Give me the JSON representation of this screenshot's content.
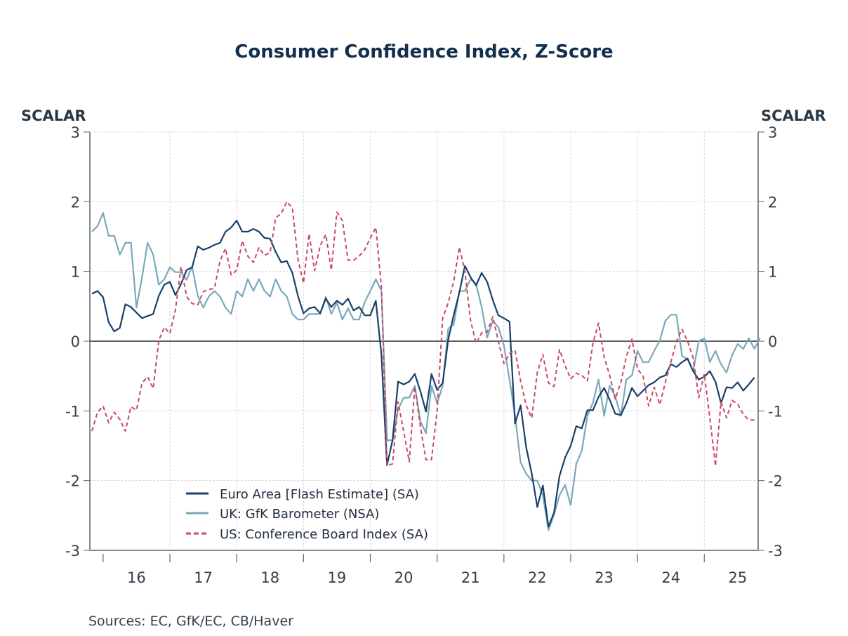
{
  "chart_data": {
    "type": "line",
    "title": "Consumer Confidence Index, Z-Score",
    "ylabel_left": "SCALAR",
    "ylabel_right": "SCALAR",
    "xlabel": "",
    "ylim": [
      -3,
      3
    ],
    "yticks": [
      "3",
      "2",
      "1",
      "0",
      "-1",
      "-2",
      "-3"
    ],
    "ytick_values": [
      3,
      2,
      1,
      0,
      -1,
      -2,
      -3
    ],
    "xtick_labels": [
      "16",
      "17",
      "18",
      "19",
      "20",
      "21",
      "22",
      "23",
      "24",
      "25"
    ],
    "x_start": "2015-11",
    "x_frequency": "monthly",
    "grid": true,
    "zero_line": true,
    "legend_position": "bottom-left",
    "source": "Sources:  EC, GfK/EC, CB/Haver",
    "series": [
      {
        "name": "Euro Area [Flash Estimate] (SA)",
        "color": "#17406a",
        "style": "solid",
        "values": [
          0.68,
          0.72,
          0.63,
          0.27,
          0.14,
          0.19,
          0.53,
          0.49,
          0.41,
          0.33,
          0.36,
          0.39,
          0.65,
          0.81,
          0.85,
          0.66,
          0.82,
          1.02,
          1.06,
          1.36,
          1.31,
          1.34,
          1.38,
          1.41,
          1.57,
          1.63,
          1.73,
          1.57,
          1.57,
          1.61,
          1.57,
          1.48,
          1.47,
          1.28,
          1.13,
          1.15,
          0.98,
          0.65,
          0.4,
          0.47,
          0.49,
          0.4,
          0.61,
          0.49,
          0.58,
          0.52,
          0.61,
          0.44,
          0.49,
          0.37,
          0.37,
          0.58,
          -0.2,
          -1.78,
          -1.42,
          -0.58,
          -0.62,
          -0.58,
          -0.47,
          -0.72,
          -1.01,
          -0.47,
          -0.7,
          -0.6,
          0.02,
          0.38,
          0.7,
          1.08,
          0.92,
          0.8,
          0.98,
          0.85,
          0.59,
          0.37,
          0.33,
          0.28,
          -1.18,
          -0.92,
          -1.52,
          -1.9,
          -2.38,
          -2.07,
          -2.66,
          -2.46,
          -1.93,
          -1.67,
          -1.5,
          -1.22,
          -1.25,
          -0.99,
          -0.99,
          -0.8,
          -0.67,
          -0.84,
          -1.04,
          -1.06,
          -0.89,
          -0.67,
          -0.79,
          -0.71,
          -0.63,
          -0.59,
          -0.52,
          -0.49,
          -0.33,
          -0.37,
          -0.3,
          -0.25,
          -0.43,
          -0.55,
          -0.51,
          -0.43,
          -0.58,
          -0.89,
          -0.66,
          -0.67,
          -0.59,
          -0.71,
          -0.62,
          -0.52
        ]
      },
      {
        "name": "UK: GfK Barometer (NSA)",
        "color": "#7aa9b8",
        "style": "solid",
        "values": [
          1.57,
          1.65,
          1.84,
          1.51,
          1.51,
          1.24,
          1.41,
          1.41,
          0.48,
          0.92,
          1.41,
          1.24,
          0.81,
          0.89,
          1.06,
          0.99,
          0.99,
          0.88,
          1.07,
          0.65,
          0.48,
          0.64,
          0.72,
          0.64,
          0.48,
          0.39,
          0.72,
          0.64,
          0.89,
          0.72,
          0.89,
          0.72,
          0.64,
          0.89,
          0.72,
          0.64,
          0.39,
          0.31,
          0.31,
          0.39,
          0.39,
          0.39,
          0.64,
          0.39,
          0.55,
          0.31,
          0.47,
          0.31,
          0.31,
          0.56,
          0.72,
          0.89,
          0.72,
          -1.42,
          -1.42,
          -0.98,
          -0.81,
          -0.81,
          -0.64,
          -1.15,
          -1.32,
          -0.64,
          -0.89,
          -0.64,
          0.18,
          0.24,
          0.72,
          0.72,
          0.89,
          0.82,
          0.49,
          0.05,
          0.29,
          0.2,
          -0.06,
          -0.55,
          -1.07,
          -1.74,
          -1.9,
          -2.0,
          -2.0,
          -2.21,
          -2.71,
          -2.49,
          -2.21,
          -2.06,
          -2.35,
          -1.76,
          -1.57,
          -1.07,
          -0.88,
          -0.55,
          -1.07,
          -0.64,
          -0.79,
          -1.07,
          -0.55,
          -0.49,
          -0.14,
          -0.3,
          -0.3,
          -0.14,
          0.01,
          0.29,
          0.38,
          0.38,
          -0.21,
          -0.26,
          -0.43,
          0.0,
          0.04,
          -0.3,
          -0.14,
          -0.33,
          -0.45,
          -0.2,
          -0.04,
          -0.11,
          0.04,
          -0.11,
          0.04
        ]
      },
      {
        "name": "US: Conference Board Index (SA)",
        "color": "#c94a64",
        "style": "dashed",
        "values": [
          -1.29,
          -1.02,
          -0.93,
          -1.17,
          -1.02,
          -1.12,
          -1.29,
          -0.94,
          -0.99,
          -0.6,
          -0.51,
          -0.68,
          0.01,
          0.2,
          0.11,
          0.45,
          1.07,
          0.64,
          0.54,
          0.52,
          0.71,
          0.74,
          0.76,
          1.15,
          1.33,
          0.95,
          1.02,
          1.44,
          1.22,
          1.13,
          1.34,
          1.23,
          1.27,
          1.77,
          1.83,
          2.0,
          1.91,
          1.18,
          0.83,
          1.54,
          1.01,
          1.37,
          1.53,
          1.02,
          1.85,
          1.73,
          1.16,
          1.16,
          1.22,
          1.31,
          1.48,
          1.63,
          0.77,
          -1.78,
          -1.76,
          -0.87,
          -1.3,
          -1.73,
          -0.65,
          -1.23,
          -1.7,
          -1.7,
          -1.0,
          0.33,
          0.55,
          0.86,
          1.35,
          1.0,
          0.3,
          -0.03,
          0.12,
          0.13,
          0.35,
          0.0,
          -0.32,
          -0.18,
          -0.13,
          -0.57,
          -0.92,
          -1.1,
          -0.45,
          -0.19,
          -0.6,
          -0.65,
          -0.12,
          -0.35,
          -0.54,
          -0.46,
          -0.49,
          -0.57,
          -0.03,
          0.26,
          -0.23,
          -0.49,
          -0.83,
          -0.59,
          -0.22,
          0.03,
          -0.4,
          -0.5,
          -0.93,
          -0.66,
          -0.91,
          -0.59,
          -0.3,
          0.0,
          0.17,
          0.0,
          -0.24,
          -0.81,
          -0.47,
          -1.1,
          -1.79,
          -0.87,
          -1.1,
          -0.85,
          -0.9,
          -1.05,
          -1.13,
          -1.13
        ]
      }
    ]
  }
}
